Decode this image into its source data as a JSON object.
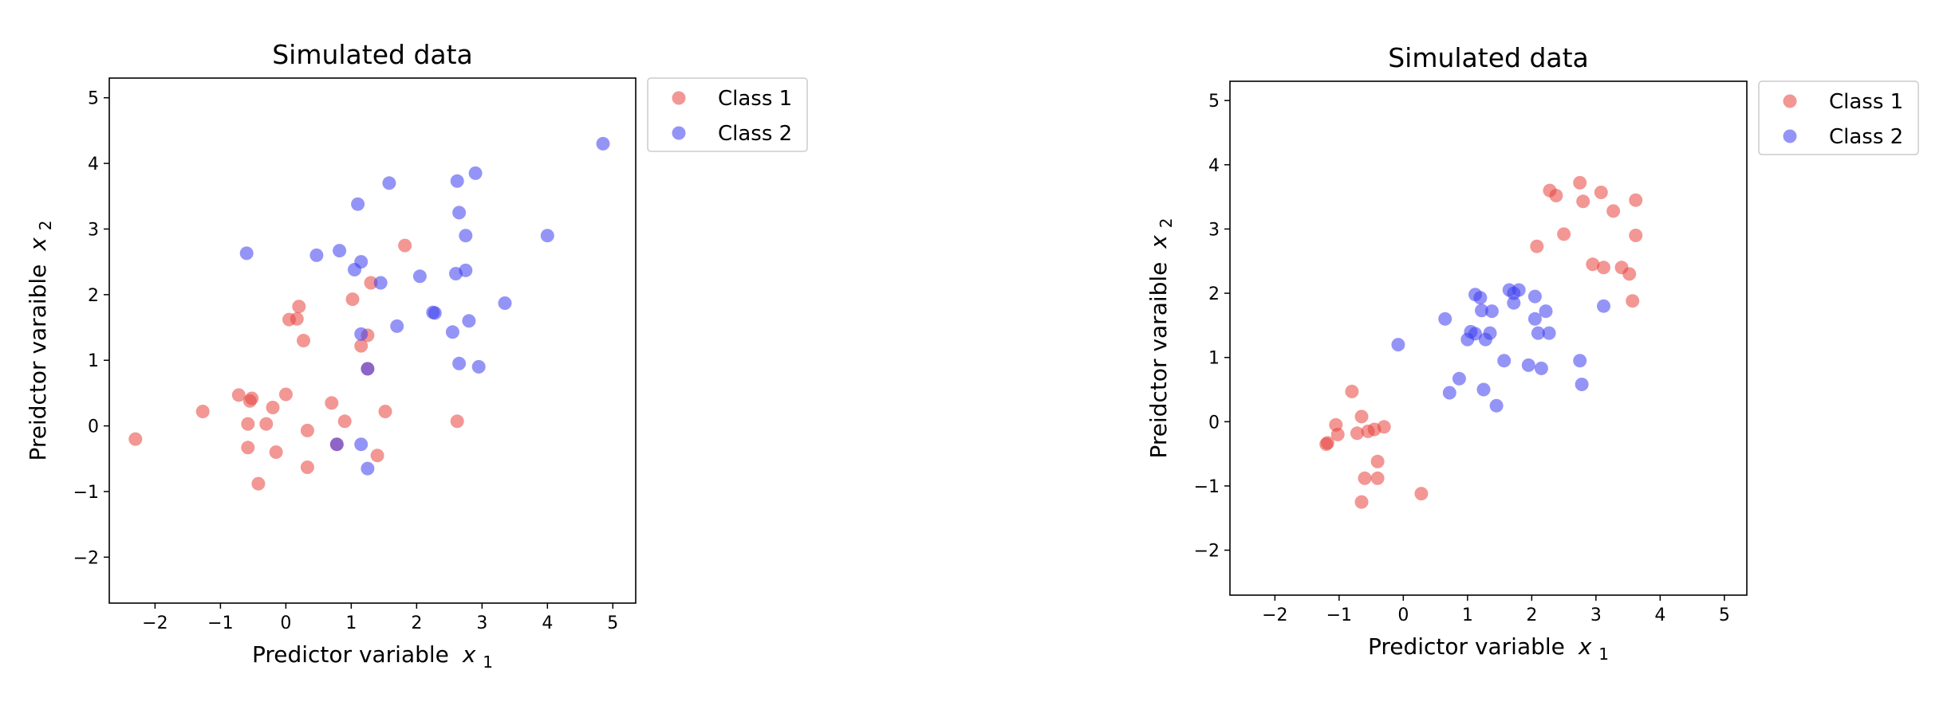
{
  "chart_data": [
    {
      "type": "scatter",
      "title": "Simulated data",
      "xlabel": "Predictor variable",
      "ylabel": "Preidctor varaible",
      "xlabel_var": "x",
      "xlabel_sub": "1",
      "ylabel_var": "x",
      "ylabel_sub": "2",
      "xlim": [
        -2.7,
        5.35
      ],
      "ylim": [
        -2.7,
        5.3
      ],
      "xticks": [
        -2,
        -1,
        0,
        1,
        2,
        3,
        4,
        5
      ],
      "yticks": [
        -2,
        -1,
        0,
        1,
        2,
        3,
        4,
        5
      ],
      "grid": false,
      "legend_position": "outside-upper-right",
      "series": [
        {
          "name": "Class 1",
          "color": "#e8413c",
          "points": [
            [
              -2.3,
              -0.2
            ],
            [
              -1.27,
              0.22
            ],
            [
              -0.72,
              0.47
            ],
            [
              -0.55,
              0.38
            ],
            [
              -0.52,
              0.42
            ],
            [
              -0.58,
              0.03
            ],
            [
              -0.58,
              -0.33
            ],
            [
              -0.42,
              -0.88
            ],
            [
              -0.3,
              0.03
            ],
            [
              -0.2,
              0.28
            ],
            [
              -0.15,
              -0.4
            ],
            [
              0.0,
              0.48
            ],
            [
              0.05,
              1.62
            ],
            [
              0.17,
              1.63
            ],
            [
              0.2,
              1.82
            ],
            [
              0.27,
              1.3
            ],
            [
              0.33,
              -0.07
            ],
            [
              0.33,
              -0.63
            ],
            [
              0.7,
              0.35
            ],
            [
              0.9,
              0.07
            ],
            [
              1.02,
              1.93
            ],
            [
              1.15,
              1.22
            ],
            [
              1.25,
              1.38
            ],
            [
              1.3,
              2.18
            ],
            [
              1.4,
              -0.45
            ],
            [
              1.52,
              0.22
            ],
            [
              1.82,
              2.75
            ],
            [
              2.62,
              0.07
            ],
            [
              0.78,
              -0.28
            ],
            [
              1.25,
              0.87
            ]
          ]
        },
        {
          "name": "Class 2",
          "color": "#3c3cf0",
          "points": [
            [
              -0.6,
              2.63
            ],
            [
              0.47,
              2.6
            ],
            [
              0.82,
              2.67
            ],
            [
              1.05,
              2.38
            ],
            [
              1.1,
              3.38
            ],
            [
              1.15,
              2.5
            ],
            [
              1.15,
              1.4
            ],
            [
              1.15,
              -0.28
            ],
            [
              1.25,
              -0.65
            ],
            [
              1.25,
              0.87
            ],
            [
              1.45,
              2.18
            ],
            [
              1.58,
              3.7
            ],
            [
              1.7,
              1.52
            ],
            [
              2.05,
              2.28
            ],
            [
              2.25,
              1.73
            ],
            [
              2.28,
              1.72
            ],
            [
              2.55,
              1.43
            ],
            [
              2.6,
              2.32
            ],
            [
              2.62,
              3.73
            ],
            [
              2.65,
              0.95
            ],
            [
              2.65,
              3.25
            ],
            [
              2.75,
              2.9
            ],
            [
              2.75,
              2.37
            ],
            [
              2.8,
              1.6
            ],
            [
              2.9,
              3.85
            ],
            [
              2.95,
              0.9
            ],
            [
              3.35,
              1.87
            ],
            [
              4.0,
              2.9
            ],
            [
              4.85,
              4.3
            ],
            [
              0.78,
              -0.28
            ]
          ]
        }
      ]
    },
    {
      "type": "scatter",
      "title": "Simulated data",
      "xlabel": "Predictor variable",
      "ylabel": "Preidctor varaible",
      "xlabel_var": "x",
      "xlabel_sub": "1",
      "ylabel_var": "x",
      "ylabel_sub": "2",
      "xlim": [
        -2.7,
        5.35
      ],
      "ylim": [
        -2.7,
        5.3
      ],
      "xticks": [
        -2,
        -1,
        0,
        1,
        2,
        3,
        4,
        5
      ],
      "yticks": [
        -2,
        -1,
        0,
        1,
        2,
        3,
        4,
        5
      ],
      "grid": false,
      "legend_position": "outside-upper-right",
      "series": [
        {
          "name": "Class 1",
          "color": "#e8413c",
          "points": [
            [
              -1.2,
              -0.35
            ],
            [
              -1.18,
              -0.33
            ],
            [
              -1.05,
              -0.05
            ],
            [
              -1.02,
              -0.2
            ],
            [
              -0.8,
              0.47
            ],
            [
              -0.72,
              -0.18
            ],
            [
              -0.65,
              0.08
            ],
            [
              -0.65,
              -1.25
            ],
            [
              -0.6,
              -0.88
            ],
            [
              -0.55,
              -0.15
            ],
            [
              -0.45,
              -0.12
            ],
            [
              -0.4,
              -0.62
            ],
            [
              -0.4,
              -0.88
            ],
            [
              -0.3,
              -0.08
            ],
            [
              0.28,
              -1.12
            ],
            [
              2.08,
              2.73
            ],
            [
              2.28,
              3.6
            ],
            [
              2.38,
              3.52
            ],
            [
              2.5,
              2.92
            ],
            [
              2.75,
              3.72
            ],
            [
              2.8,
              3.43
            ],
            [
              2.95,
              2.45
            ],
            [
              3.08,
              3.57
            ],
            [
              3.12,
              2.4
            ],
            [
              3.27,
              3.28
            ],
            [
              3.4,
              2.4
            ],
            [
              3.52,
              2.3
            ],
            [
              3.57,
              1.88
            ],
            [
              3.62,
              3.45
            ],
            [
              3.62,
              2.9
            ]
          ]
        },
        {
          "name": "Class 2",
          "color": "#3c3cf0",
          "points": [
            [
              -0.08,
              1.2
            ],
            [
              0.65,
              1.6
            ],
            [
              0.72,
              0.45
            ],
            [
              0.87,
              0.67
            ],
            [
              1.0,
              1.28
            ],
            [
              1.05,
              1.4
            ],
            [
              1.12,
              1.37
            ],
            [
              1.12,
              1.98
            ],
            [
              1.2,
              1.93
            ],
            [
              1.22,
              1.73
            ],
            [
              1.25,
              0.5
            ],
            [
              1.28,
              1.28
            ],
            [
              1.35,
              1.38
            ],
            [
              1.38,
              1.72
            ],
            [
              1.45,
              0.25
            ],
            [
              1.57,
              0.95
            ],
            [
              1.65,
              2.05
            ],
            [
              1.72,
              2.0
            ],
            [
              1.72,
              1.85
            ],
            [
              1.8,
              2.05
            ],
            [
              1.95,
              0.88
            ],
            [
              2.05,
              1.95
            ],
            [
              2.05,
              1.6
            ],
            [
              2.1,
              1.38
            ],
            [
              2.15,
              0.83
            ],
            [
              2.22,
              1.72
            ],
            [
              2.27,
              1.38
            ],
            [
              2.75,
              0.95
            ],
            [
              2.78,
              0.58
            ],
            [
              3.12,
              1.8
            ]
          ]
        }
      ]
    }
  ]
}
